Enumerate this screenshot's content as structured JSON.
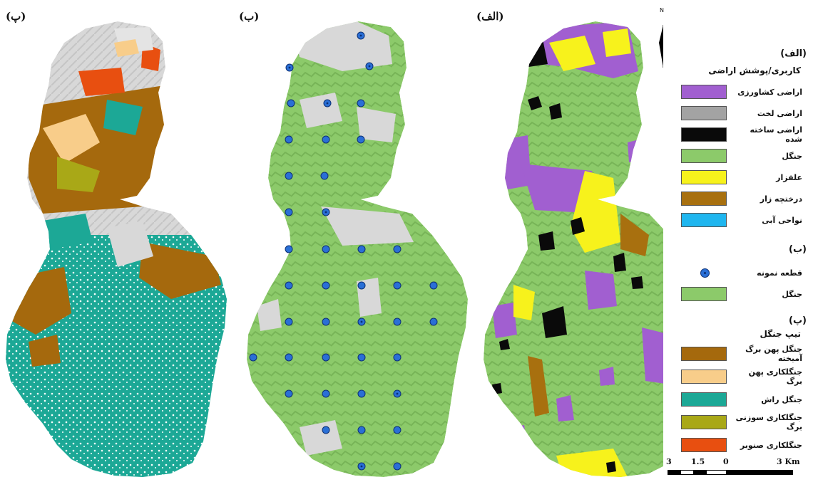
{
  "panels": {
    "p_label": "(پ)",
    "b_label": "(ب)",
    "alef_label": "(الف)"
  },
  "north": {
    "label": "N"
  },
  "legend": {
    "section_alef": {
      "head": "(الف)",
      "title": "کاربری/پوشش اراضی",
      "items": [
        {
          "label": "اراضی کشاورزی",
          "color": "#a15fd0"
        },
        {
          "label": "اراضی لخت",
          "color": "#a3a3a3"
        },
        {
          "label": "اراضی ساخته شده",
          "color": "#0a0a0a"
        },
        {
          "label": "جنگل",
          "color": "#8cca6a"
        },
        {
          "label": "علفزار",
          "color": "#f7f21c"
        },
        {
          "label": "درختچه زار",
          "color": "#a8700f"
        },
        {
          "label": "نواحی آبی",
          "color": "#1fb6ef"
        }
      ]
    },
    "section_b": {
      "head": "(ب)",
      "items": [
        {
          "label": "قطعه نمونه",
          "kind": "dot",
          "color": "#2a6fd6"
        },
        {
          "label": "جنگل",
          "color": "#8cca6a"
        }
      ]
    },
    "section_p": {
      "head": "(پ)",
      "title": "تیپ جنگل",
      "items": [
        {
          "label": "جنگل پهن برگ آمیخته",
          "color": "#a5690d"
        },
        {
          "label": "جنگلکاری پهن برگ",
          "color": "#f8cd8a"
        },
        {
          "label": "جنگل راش",
          "color": "#1ca896"
        },
        {
          "label": "جنگلکاری سوزنی برگ",
          "color": "#a9a817"
        },
        {
          "label": "جنگلکاری صنوبر",
          "color": "#e84f10"
        }
      ]
    }
  },
  "scale_bar": {
    "labels": [
      "3",
      "1.5",
      "0",
      "3 Km"
    ]
  },
  "colors": {
    "forest": "#8cca6a",
    "forest_dark": "#6fae52",
    "bare": "#d8d8d8",
    "beech": "#1ca896",
    "mixed": "#a5690d",
    "plant_broad": "#f8cd8a",
    "needle": "#a9a817",
    "poplar": "#e84f10",
    "agri": "#a15fd0",
    "built": "#0a0a0a",
    "grass": "#f7f21c",
    "plot": "#2a6fd6"
  }
}
